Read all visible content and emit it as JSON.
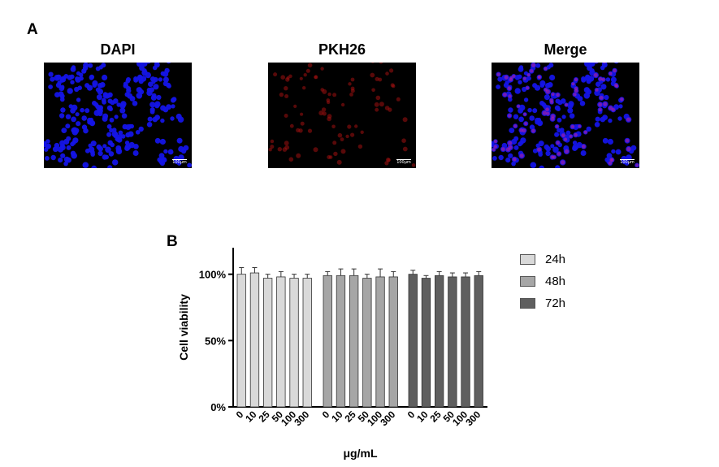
{
  "panel_a": {
    "letter": "A",
    "images": [
      {
        "title": "DAPI",
        "scale_label": "100μm",
        "stain": "blue"
      },
      {
        "title": "PKH26",
        "scale_label": "100μm",
        "stain": "red"
      },
      {
        "title": "Merge",
        "scale_label": "100μm",
        "stain": "merge"
      }
    ]
  },
  "panel_b": {
    "letter": "B"
  },
  "colors": {
    "24h": "#d9d9d9",
    "48h": "#a6a6a6",
    "72h": "#5f5f5f",
    "dapi": "#1414e6",
    "pkh26": "#a01010"
  },
  "chart_data": {
    "type": "bar",
    "xlabel": "μg/mL",
    "ylabel": "Cell viability",
    "yticks": [
      "0%",
      "50%",
      "100%"
    ],
    "ylim": [
      0,
      120
    ],
    "categories": [
      "0",
      "10",
      "25",
      "50",
      "100",
      "300"
    ],
    "series": [
      {
        "name": "24h",
        "values": [
          100,
          101,
          97,
          98,
          97,
          97
        ],
        "errors": [
          5,
          4,
          3,
          4,
          3,
          3
        ]
      },
      {
        "name": "48h",
        "values": [
          99,
          99,
          99,
          97,
          98,
          98
        ],
        "errors": [
          3,
          5,
          5,
          3,
          6,
          4
        ]
      },
      {
        "name": "72h",
        "values": [
          100,
          97,
          99,
          98,
          98,
          99
        ],
        "errors": [
          3,
          2,
          3,
          3,
          3,
          3
        ]
      }
    ],
    "legend_position": "right"
  }
}
